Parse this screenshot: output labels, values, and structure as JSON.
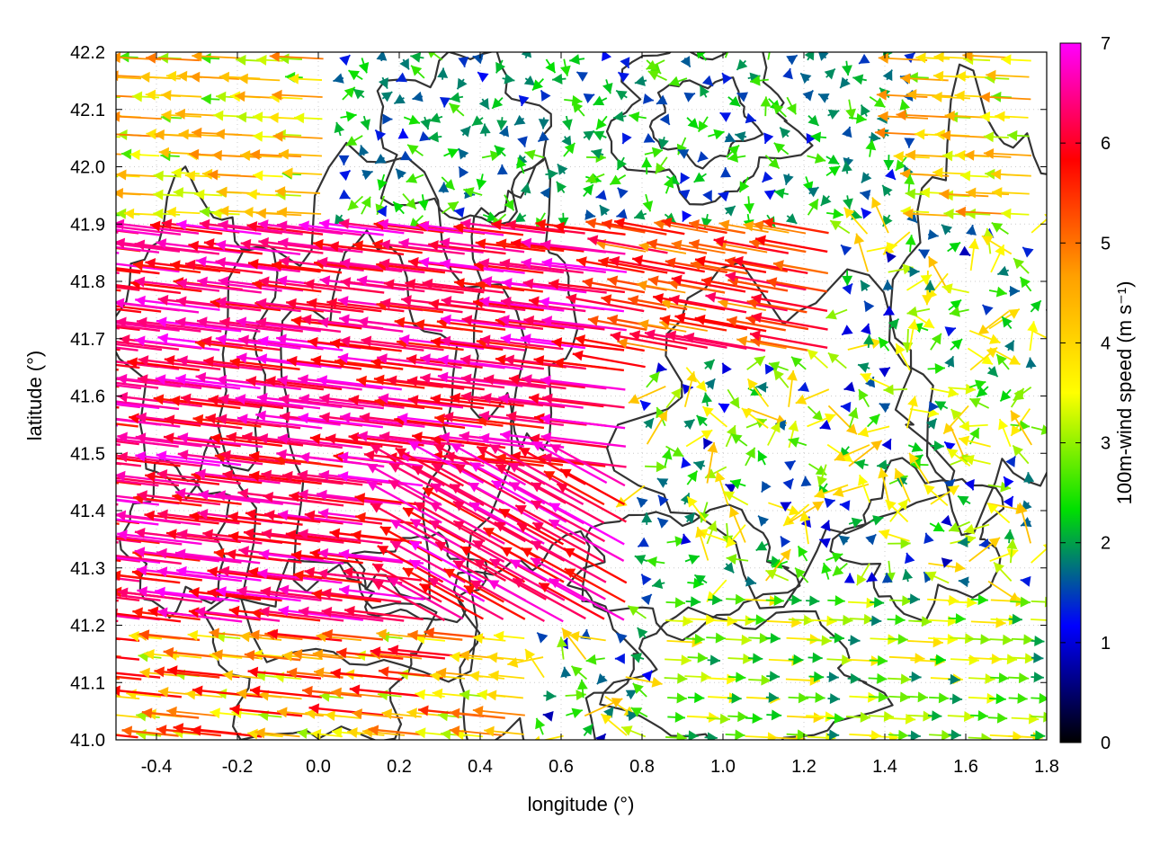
{
  "chart_data": {
    "type": "vector-field",
    "xlabel": "longitude (°)",
    "ylabel": "latitude (°)",
    "xlim": [
      -0.5,
      1.8
    ],
    "ylim": [
      41.0,
      42.2
    ],
    "xticks": [
      "-0.4",
      "-0.2",
      "0.0",
      "0.2",
      "0.4",
      "0.6",
      "0.8",
      "1.0",
      "1.2",
      "1.4",
      "1.6",
      "1.8"
    ],
    "yticks": [
      "41.0",
      "41.1",
      "41.2",
      "41.3",
      "41.4",
      "41.5",
      "41.6",
      "41.7",
      "41.8",
      "41.9",
      "42.0",
      "42.1",
      "42.2"
    ],
    "grid": true,
    "colorbar": {
      "label": "100m-wind speed (m s⁻¹)",
      "range": [
        0,
        7
      ],
      "ticks": [
        "0",
        "1",
        "2",
        "3",
        "4",
        "5",
        "6",
        "7"
      ],
      "colors": [
        "#000000",
        "#0000ff",
        "#00e000",
        "#ffff00",
        "#ffa000",
        "#ff0000",
        "#ff00ff"
      ]
    },
    "regimes": [
      {
        "region": "west, 41.2–41.9 lat",
        "speed": 6.5,
        "direction": "westward"
      },
      {
        "region": "north-west, 41.9–42.2 lat",
        "speed": 3.5,
        "direction": "westward"
      },
      {
        "region": "north-centre, 42.0–42.2 lat",
        "speed": 1.2,
        "direction": "variable"
      },
      {
        "region": "south-east, 41.0–41.3 lat",
        "speed": 2.5,
        "direction": "eastward"
      },
      {
        "region": "centre, 41.3–41.7 lat",
        "speed": 2.0,
        "direction": "variable"
      }
    ]
  }
}
